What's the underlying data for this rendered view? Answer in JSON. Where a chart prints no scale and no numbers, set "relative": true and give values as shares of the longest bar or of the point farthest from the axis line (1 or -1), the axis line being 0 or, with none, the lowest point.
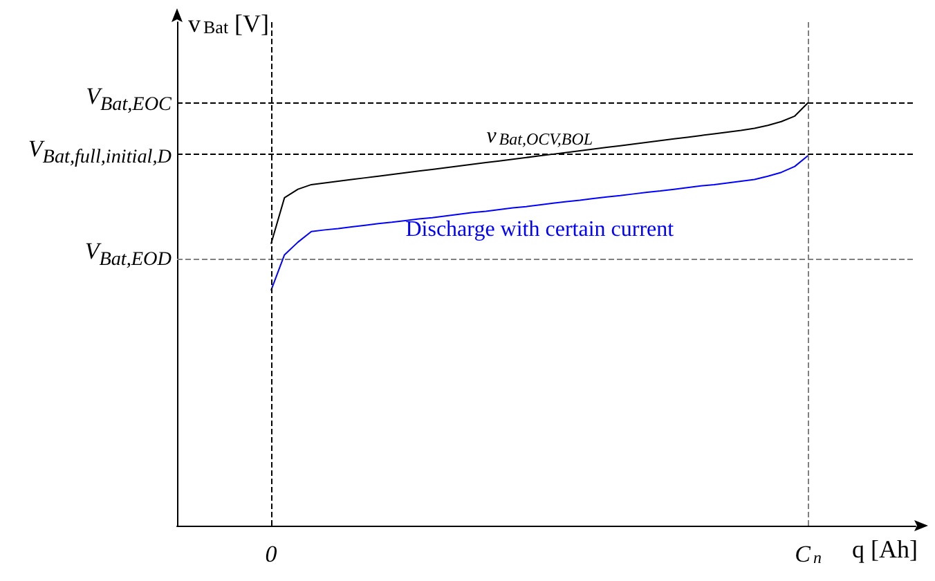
{
  "chart_data": {
    "type": "line",
    "relative": true,
    "xlabel": "q [Ah]",
    "ylabel": "v$_{Bat}$ [V]",
    "categories": [
      null,
      null,
      null,
      null,
      null,
      null,
      null,
      "0",
      null,
      null,
      null,
      null,
      null,
      null,
      null,
      null,
      null,
      null,
      null,
      null,
      null,
      null,
      null,
      null,
      null,
      null,
      null,
      null,
      null,
      null,
      null,
      null,
      null,
      null,
      null,
      null,
      null,
      null,
      null,
      null,
      null,
      null,
      null,
      null,
      null,
      null,
      null,
      "C$_{n}$",
      null,
      null,
      null,
      null,
      null,
      null,
      null,
      null
    ],
    "series": [
      {
        "name": "v$_{Bat,OCV,BOL}$",
        "color": "#000000",
        "values": [
          null,
          null,
          null,
          null,
          null,
          null,
          null,
          0.666,
          0.775,
          0.795,
          0.806,
          0.81,
          0.814,
          0.818,
          0.822,
          0.826,
          0.83,
          0.834,
          0.838,
          0.842,
          0.846,
          0.85,
          0.854,
          0.858,
          0.862,
          0.866,
          0.87,
          0.874,
          0.878,
          0.882,
          0.886,
          0.89,
          0.894,
          0.898,
          0.902,
          0.906,
          0.91,
          0.914,
          0.918,
          0.922,
          0.926,
          0.93,
          0.934,
          0.939,
          0.946,
          0.955,
          0.968,
          1,
          null,
          null,
          null,
          null,
          null,
          null,
          null,
          null
        ]
      },
      {
        "name": "Discharge with certain current",
        "color": "#0000ff",
        "values": [
          null,
          null,
          null,
          null,
          null,
          null,
          null,
          0.556,
          0.64,
          0.67,
          0.695,
          0.699,
          0.702,
          0.706,
          0.71,
          0.714,
          0.717,
          0.721,
          0.725,
          0.728,
          0.732,
          0.736,
          0.74,
          0.743,
          0.747,
          0.751,
          0.754,
          0.758,
          0.762,
          0.766,
          0.769,
          0.773,
          0.777,
          0.78,
          0.784,
          0.788,
          0.791,
          0.795,
          0.799,
          0.803,
          0.806,
          0.81,
          0.814,
          0.818,
          0.826,
          0.835,
          0.849,
          0.875,
          null,
          null,
          null,
          null,
          null,
          null,
          null,
          null
        ]
      }
    ],
    "ref_lines": [
      {
        "axis": "y",
        "value": 1,
        "label": "V$_{Bat,EOC}$",
        "color": "#000000",
        "line_style": "dashed"
      },
      {
        "axis": "y",
        "value": 0.875,
        "label": "V$_{Bat,full,initial,D}$",
        "color": "#000000",
        "line_style": "dashed"
      },
      {
        "axis": "y",
        "value": 0.634,
        "label": "V$_{Bat,EOD}$",
        "color": "#808080",
        "line_style": "dashed"
      },
      {
        "axis": "x",
        "value": "0",
        "color": "#000000",
        "line_style": "dashed"
      },
      {
        "axis": "x",
        "value": "C$_{n}$",
        "color": "#808080",
        "line_style": "dashed"
      }
    ]
  }
}
